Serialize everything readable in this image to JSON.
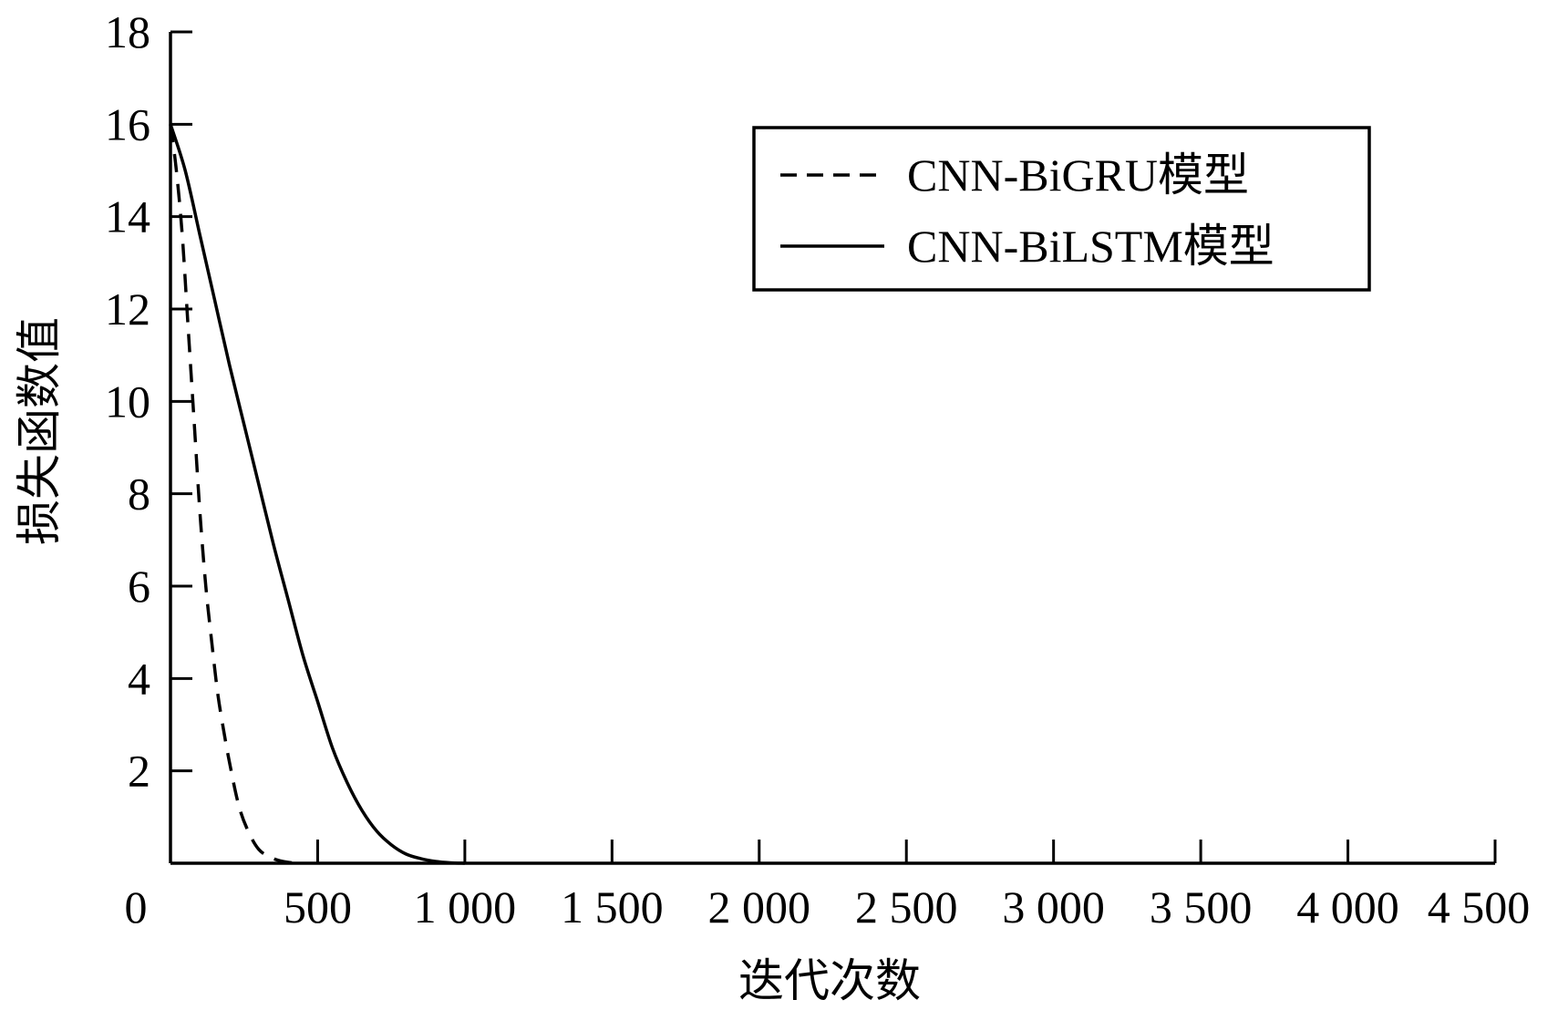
{
  "chart_data": {
    "type": "line",
    "xlabel": "迭代次数",
    "ylabel": "损失函数值",
    "xlim": [
      0,
      4500
    ],
    "ylim": [
      0,
      18
    ],
    "xticks": [
      0,
      500,
      1000,
      1500,
      2000,
      2500,
      3000,
      3500,
      4000,
      4500
    ],
    "xtick_labels": [
      "0",
      "500",
      "1 000",
      "1 500",
      "2 000",
      "2 500",
      "3 000",
      "3 500",
      "4 000",
      "4 500"
    ],
    "yticks": [
      2,
      4,
      6,
      8,
      10,
      12,
      14,
      16,
      18
    ],
    "ytick_labels": [
      "2",
      "4",
      "6",
      "8",
      "10",
      "12",
      "14",
      "16",
      "18"
    ],
    "legend_position": "top-right",
    "grid": false,
    "series": [
      {
        "name": "CNN-BiGRU模型",
        "style": "dashed",
        "color": "#000000",
        "x": [
          0,
          20,
          40,
          60,
          80,
          100,
          120,
          140,
          160,
          180,
          200,
          230,
          260,
          300,
          350,
          400,
          450
        ],
        "y": [
          16.0,
          15.0,
          13.6,
          11.6,
          9.6,
          7.6,
          6.0,
          4.8,
          3.7,
          2.9,
          2.2,
          1.3,
          0.75,
          0.3,
          0.1,
          0.02,
          0.0
        ]
      },
      {
        "name": "CNN-BiLSTM模型",
        "style": "solid",
        "color": "#000000",
        "x": [
          0,
          50,
          100,
          150,
          200,
          250,
          300,
          350,
          400,
          450,
          500,
          550,
          600,
          650,
          700,
          750,
          800,
          850,
          900,
          950,
          1000
        ],
        "y": [
          16.0,
          15.0,
          13.6,
          12.2,
          10.8,
          9.5,
          8.2,
          6.9,
          5.7,
          4.5,
          3.5,
          2.5,
          1.75,
          1.15,
          0.7,
          0.4,
          0.2,
          0.1,
          0.04,
          0.01,
          0.0
        ]
      }
    ]
  }
}
